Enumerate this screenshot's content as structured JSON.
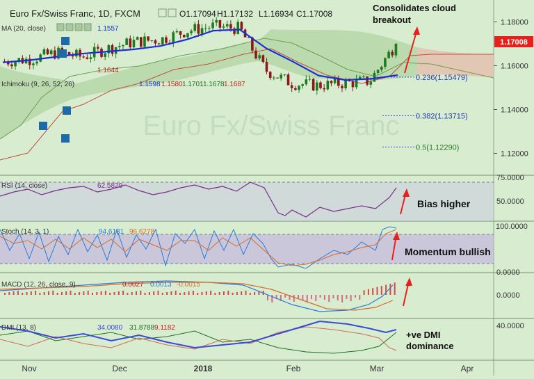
{
  "header": {
    "title": "Euro Fx/Swiss Franc, 1D, FXCM",
    "ohlc": [
      {
        "k": "O",
        "v": "1.17094"
      },
      {
        "k": "H",
        "v": "1.17132"
      },
      {
        "k": "L",
        "v": "1.16934"
      },
      {
        "k": "C",
        "v": "1.17008"
      }
    ]
  },
  "watermark": "Euro Fx/Swiss Franc",
  "indicators": {
    "ma": {
      "label": "MA (20, close)",
      "value": "1.1557"
    },
    "ma_small": {
      "value": "1.1644"
    },
    "ichimoku": {
      "label": "Ichimoku (9, 26, 52, 26)",
      "values": [
        "1.1598",
        "1.1580",
        "1.1701",
        "1.1678",
        "1.1687"
      ]
    }
  },
  "fib_levels": [
    {
      "label": "0.236(1.15479)",
      "price": 1.15479
    },
    {
      "label": "0.382(1.13715)",
      "price": 1.13715
    },
    {
      "label": "0.5(1.12290)",
      "price": 1.1229
    }
  ],
  "annotations": {
    "cloud_breakout": "Consolidates cloud breakout",
    "bias": "Bias higher",
    "momentum": "Momentum bullish",
    "dmi": "+ve DMI dominance"
  },
  "price_tag": "1.17008",
  "colors": {
    "background": "#d8ecd0",
    "candle_up": "#1e7a1e",
    "candle_down": "#8a1a1a",
    "ma": "#1a2fd6",
    "cloud_green": "#b6d7a8",
    "cloud_red": "#e3c4b0",
    "price_tag": "#e8201c",
    "annotation_arrow": "#e8201c"
  },
  "panels": {
    "rsi": {
      "label": "RSI (14, close)",
      "value": "62.5829",
      "ticks": [
        "75.0000",
        "50.0000"
      ]
    },
    "stoch": {
      "label": "Stoch (14, 3, 1)",
      "values": [
        "94.6181",
        "96.6278"
      ],
      "ticks": [
        "100.0000",
        "0.0000"
      ]
    },
    "macd": {
      "label": "MACD (12, 26, close, 9)",
      "values": [
        "0.0027",
        "0.0013",
        "-0.0015"
      ],
      "ticks": [
        "0.0000"
      ]
    },
    "dmi": {
      "label": "DMI (13, 8)",
      "values": [
        "34.0080",
        "31.8788",
        "9.1182"
      ],
      "ticks": [
        "40.0000"
      ]
    }
  },
  "chart_data": {
    "type": "line",
    "title": "Euro Fx/Swiss Franc, 1D, FXCM",
    "x_ticks": [
      "Nov",
      "Dec",
      "2018",
      "Feb",
      "Mar",
      "Apr"
    ],
    "ylim": [
      1.11,
      1.19
    ],
    "y_ticks": [
      1.18,
      1.16,
      1.14,
      1.12
    ],
    "series": [
      {
        "name": "MA (20, close)",
        "values": [
          1.1615,
          1.1625,
          1.164,
          1.1655,
          1.1665,
          1.1675,
          1.169,
          1.172,
          1.176,
          1.1765,
          1.168,
          1.162,
          1.1555,
          1.1535,
          1.154,
          1.1557
        ]
      }
    ],
    "close_values": [
      1.162,
      1.163,
      1.166,
      1.164,
      1.168,
      1.171,
      1.172,
      1.176,
      1.178,
      1.177,
      1.158,
      1.152,
      1.151,
      1.152,
      1.153,
      1.17008
    ],
    "last_close": 1.17008
  }
}
